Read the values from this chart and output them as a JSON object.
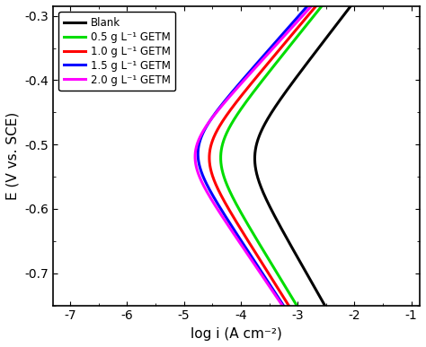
{
  "title": "",
  "xlabel": "log i (A cm⁻²)",
  "ylabel": "E (V vs. SCE)",
  "xlim": [
    -7.3,
    -0.85
  ],
  "ylim": [
    -0.75,
    -0.285
  ],
  "yticks": [
    -0.7,
    -0.6,
    -0.5,
    -0.4,
    -0.3
  ],
  "xticks": [
    -7,
    -6,
    -5,
    -4,
    -3,
    -2,
    -1
  ],
  "curves": [
    {
      "label": "Blank",
      "color": "#000000",
      "E_corr": -0.513,
      "log_i_corr": -4.05,
      "ba": 0.115,
      "bc": 0.155
    },
    {
      "label": "0.5 g L⁻¹ GETM",
      "color": "#00dd00",
      "E_corr": -0.513,
      "log_i_corr": -4.65,
      "ba": 0.11,
      "bc": 0.145
    },
    {
      "label": "1.0 g L⁻¹ GETM",
      "color": "#ff0000",
      "E_corr": -0.513,
      "log_i_corr": -4.85,
      "ba": 0.105,
      "bc": 0.14
    },
    {
      "label": "1.5 g L⁻¹ GETM",
      "color": "#0000ff",
      "E_corr": -0.507,
      "log_i_corr": -5.05,
      "ba": 0.1,
      "bc": 0.135
    },
    {
      "label": "2.0 g L⁻¹ GETM",
      "color": "#ff00ff",
      "E_corr": -0.512,
      "log_i_corr": -5.1,
      "ba": 0.097,
      "bc": 0.13
    }
  ],
  "background_color": "#ffffff",
  "linewidth": 2.2
}
